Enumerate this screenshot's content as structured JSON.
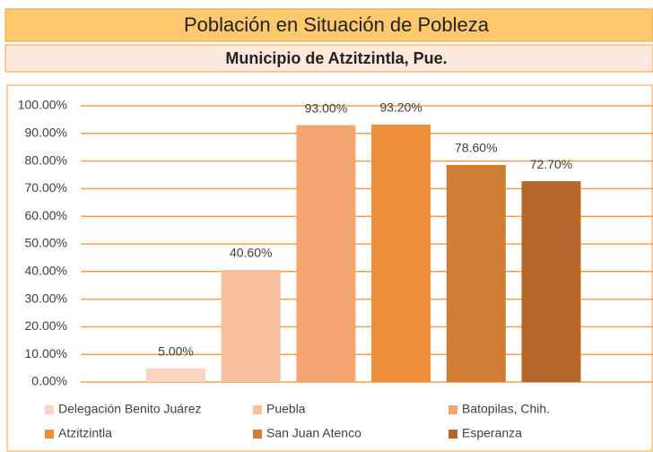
{
  "chart_data": {
    "type": "bar",
    "title": "Población en Situación de Pobleza",
    "subtitle": "Municipio de Atzitzintla, Pue.",
    "series": [
      {
        "name": "Delegación Benito Juárez",
        "color": "#fbd5c4",
        "values": [
          5
        ],
        "value_labels": [
          "5.00%"
        ]
      },
      {
        "name": "Puebla",
        "color": "#f8bf9f",
        "values": [
          40.6
        ],
        "value_labels": [
          "40.60%"
        ]
      },
      {
        "name": "Batopilas, Chih.",
        "color": "#f5a56f",
        "values": [
          93
        ],
        "value_labels": [
          "93.00%"
        ]
      },
      {
        "name": "Atzitzintla",
        "color": "#ee8c3c",
        "values": [
          93.2
        ],
        "value_labels": [
          "93.20%"
        ]
      },
      {
        "name": "San Juan Atenco",
        "color": "#d27d36",
        "values": [
          78.6
        ],
        "value_labels": [
          "78.60%"
        ]
      },
      {
        "name": "Esperanza",
        "color": "#b4662b",
        "values": [
          72.7
        ],
        "value_labels": [
          "72.70%"
        ]
      }
    ],
    "ylim": [
      0,
      100
    ],
    "yticks": [
      {
        "value": 0,
        "label": "0.00%"
      },
      {
        "value": 10,
        "label": "10.00%"
      },
      {
        "value": 20,
        "label": "20.00%"
      },
      {
        "value": 30,
        "label": "30.00%"
      },
      {
        "value": 40,
        "label": "40.00%"
      },
      {
        "value": 50,
        "label": "50.00%"
      },
      {
        "value": 60,
        "label": "60.00%"
      },
      {
        "value": 70,
        "label": "70.00%"
      },
      {
        "value": 80,
        "label": "80.00%"
      },
      {
        "value": 90,
        "label": "90.00%"
      },
      {
        "value": 100,
        "label": "100.00%"
      }
    ],
    "grid": true,
    "legend": "bottom"
  }
}
